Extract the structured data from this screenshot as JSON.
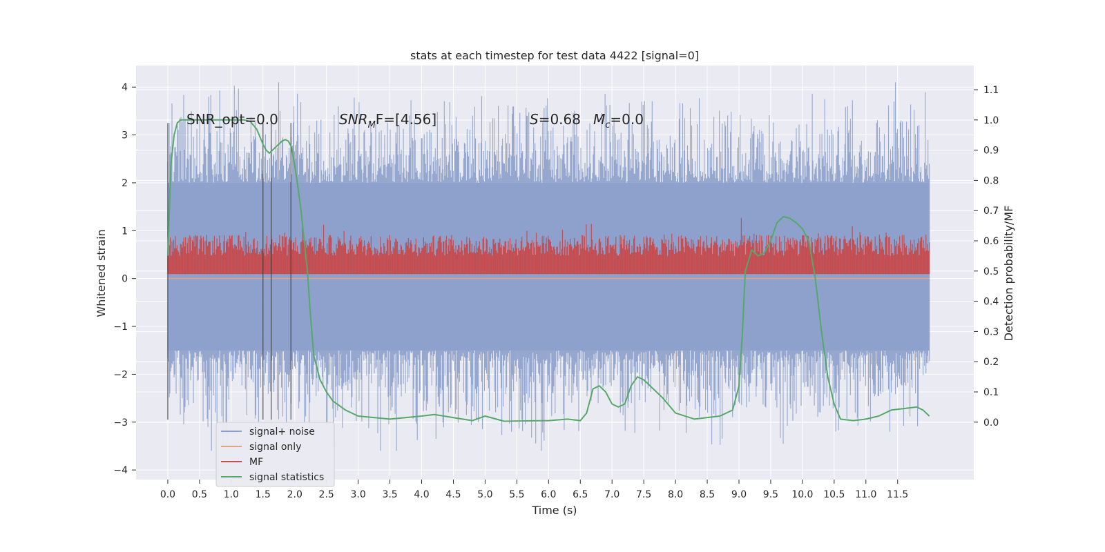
{
  "chart_data": {
    "type": "line",
    "title": "stats at each timestep for test data 4422 [signal=0]",
    "xlabel": "Time (s)",
    "ylabel": "Whitened strain",
    "y2label": "Detection probability/MF",
    "xlim": [
      -0.5,
      12.7
    ],
    "ylim": [
      -4.2,
      4.45
    ],
    "y2lim": [
      -0.19,
      1.18
    ],
    "grid": true,
    "legend_position": "lower-left",
    "x_ticks": [
      "0.0",
      "0.5",
      "1.0",
      "1.5",
      "2.0",
      "2.5",
      "3.0",
      "3.5",
      "4.0",
      "4.5",
      "5.0",
      "5.5",
      "6.0",
      "6.5",
      "7.0",
      "7.5",
      "8.0",
      "8.5",
      "9.0",
      "9.5",
      "10.0",
      "10.5",
      "11.0",
      "11.5"
    ],
    "x_tick_values": [
      0.0,
      0.5,
      1.0,
      1.5,
      2.0,
      2.5,
      3.0,
      3.5,
      4.0,
      4.5,
      5.0,
      5.5,
      6.0,
      6.5,
      7.0,
      7.5,
      8.0,
      8.5,
      9.0,
      9.5,
      10.0,
      10.5,
      11.0,
      11.5
    ],
    "y_ticks": [
      "4",
      "3",
      "2",
      "1",
      "0",
      "−1",
      "−2",
      "−3",
      "−4"
    ],
    "y_tick_values": [
      4,
      3,
      2,
      1,
      0,
      -1,
      -2,
      -3,
      -4
    ],
    "y2_ticks": [
      "1.1",
      "1.0",
      "0.9",
      "0.8",
      "0.7",
      "0.6",
      "0.5",
      "0.4",
      "0.3",
      "0.2",
      "0.1",
      "0.0"
    ],
    "y2_tick_values": [
      1.1,
      1.0,
      0.9,
      0.8,
      0.7,
      0.6,
      0.5,
      0.4,
      0.3,
      0.2,
      0.1,
      0.0
    ],
    "annotations": {
      "snr_opt": "SNR_opt=0.0",
      "snr_mf_main": "SNR",
      "snr_mf_sub": "M",
      "snr_mf_rest": "F=[4.56]",
      "s_main": "S",
      "s_rest": "=0.68",
      "mc_main": "M",
      "mc_sub": "c",
      "mc_rest": "=0.0"
    },
    "vertical_lines_x": [
      0.0,
      1.5,
      1.63,
      1.94
    ],
    "series": [
      {
        "name": "signal+ noise",
        "color": "#8da0cb",
        "style": "noise",
        "x_range": [
          0.0,
          12.0
        ],
        "band": [
          -1.5,
          2.0
        ],
        "spike_range": [
          -3.6,
          4.1
        ]
      },
      {
        "name": "signal only",
        "color": "#e8a282",
        "values_x": [
          0.0,
          12.0
        ],
        "values_y": [
          0.0,
          0.0
        ]
      },
      {
        "name": "MF",
        "color": "#c44e52",
        "style": "noise",
        "axis": "y2",
        "x_range": [
          0.0,
          12.0
        ],
        "band": [
          0.5,
          0.62
        ],
        "spike_range": [
          0.5,
          0.68
        ]
      },
      {
        "name": "signal statistics",
        "color": "#55a868",
        "axis": "y2",
        "x": [
          0.0,
          0.05,
          0.1,
          0.15,
          0.2,
          0.3,
          0.5,
          0.8,
          1.0,
          1.2,
          1.3,
          1.4,
          1.5,
          1.55,
          1.6,
          1.65,
          1.7,
          1.8,
          1.85,
          1.9,
          1.95,
          2.0,
          2.05,
          2.1,
          2.2,
          2.25,
          2.3,
          2.4,
          2.5,
          2.6,
          2.8,
          3.0,
          3.5,
          4.0,
          4.2,
          4.5,
          4.8,
          5.0,
          5.3,
          6.0,
          6.3,
          6.5,
          6.6,
          6.7,
          6.8,
          6.9,
          7.0,
          7.1,
          7.2,
          7.3,
          7.4,
          7.5,
          7.7,
          7.8,
          8.0,
          8.3,
          8.7,
          8.9,
          9.0,
          9.05,
          9.1,
          9.2,
          9.3,
          9.4,
          9.5,
          9.6,
          9.7,
          9.8,
          9.9,
          10.0,
          10.1,
          10.2,
          10.3,
          10.4,
          10.5,
          10.6,
          10.8,
          11.0,
          11.2,
          11.4,
          11.6,
          11.8,
          11.9,
          12.0
        ],
        "y": [
          0.55,
          0.85,
          0.95,
          0.99,
          1.0,
          1.0,
          1.0,
          1.0,
          1.0,
          1.0,
          0.995,
          0.97,
          0.92,
          0.9,
          0.89,
          0.9,
          0.91,
          0.93,
          0.935,
          0.93,
          0.91,
          0.85,
          0.78,
          0.7,
          0.5,
          0.35,
          0.22,
          0.14,
          0.1,
          0.07,
          0.04,
          0.02,
          0.01,
          0.02,
          0.025,
          0.015,
          0.005,
          0.02,
          0.003,
          0.005,
          0.01,
          0.005,
          0.03,
          0.11,
          0.12,
          0.1,
          0.06,
          0.05,
          0.06,
          0.12,
          0.15,
          0.14,
          0.1,
          0.08,
          0.03,
          0.01,
          0.02,
          0.04,
          0.12,
          0.28,
          0.5,
          0.57,
          0.55,
          0.56,
          0.6,
          0.66,
          0.68,
          0.675,
          0.66,
          0.64,
          0.6,
          0.48,
          0.3,
          0.15,
          0.06,
          0.01,
          0.005,
          0.01,
          0.02,
          0.04,
          0.045,
          0.05,
          0.04,
          0.02
        ]
      }
    ]
  }
}
